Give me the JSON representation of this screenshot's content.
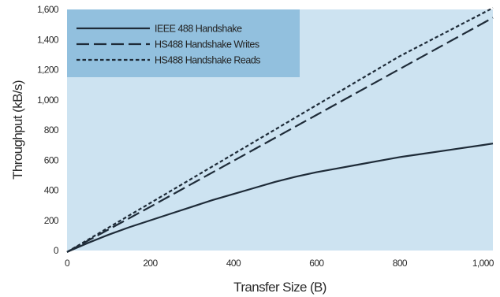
{
  "chart_data": {
    "type": "line",
    "title": "",
    "xlabel": "Transfer Size (B)",
    "ylabel": "Throughput (kB/s)",
    "xlim": [
      0,
      1024
    ],
    "ylim": [
      0,
      1600
    ],
    "x_ticks": [
      {
        "value": 0,
        "label": "0"
      },
      {
        "value": 200,
        "label": "200"
      },
      {
        "value": 400,
        "label": "400"
      },
      {
        "value": 600,
        "label": "600"
      },
      {
        "value": 800,
        "label": "800"
      },
      {
        "value": 1000,
        "label": "1,000"
      }
    ],
    "y_ticks": [
      {
        "value": 0,
        "label": "0"
      },
      {
        "value": 200,
        "label": "200"
      },
      {
        "value": 400,
        "label": "400"
      },
      {
        "value": 600,
        "label": "600"
      },
      {
        "value": 800,
        "label": "800"
      },
      {
        "value": 1000,
        "label": "1,000"
      },
      {
        "value": 1200,
        "label": "1,200"
      },
      {
        "value": 1400,
        "label": "1,400"
      },
      {
        "value": 1600,
        "label": "1,600"
      }
    ],
    "grid": false,
    "legend_position": "top-left",
    "plot_background": "#cde3f1",
    "legend_background": "#92c0de",
    "series": [
      {
        "name": "IEEE 488 Handshake",
        "style": "solid",
        "color": "#1e2b38",
        "x": [
          0,
          50,
          100,
          150,
          200,
          250,
          300,
          350,
          400,
          450,
          500,
          550,
          600,
          650,
          700,
          750,
          800,
          850,
          900,
          950,
          1000,
          1024
        ],
        "y": [
          -10,
          50,
          105,
          155,
          200,
          245,
          290,
          335,
          375,
          415,
          455,
          490,
          520,
          545,
          570,
          595,
          620,
          640,
          660,
          680,
          700,
          710
        ]
      },
      {
        "name": "HS488 Handshake Writes",
        "style": "dashed",
        "color": "#1e2b38",
        "x": [
          0,
          200,
          400,
          600,
          800,
          1024
        ],
        "y": [
          -10,
          290,
          595,
          900,
          1205,
          1545
        ]
      },
      {
        "name": "HS488 Handshake Reads",
        "style": "dotted",
        "color": "#1e2b38",
        "x": [
          0,
          200,
          400,
          600,
          800,
          1024
        ],
        "y": [
          -10,
          315,
          640,
          965,
          1290,
          1610
        ]
      }
    ]
  }
}
